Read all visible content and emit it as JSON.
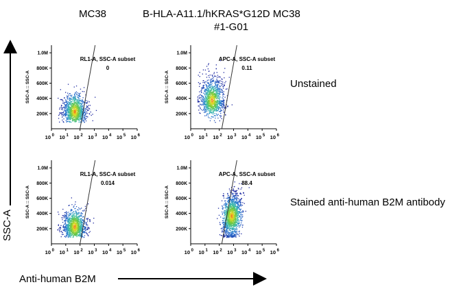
{
  "column_titles": [
    "MC38",
    "B-HLA-A11.1/hKRAS*G12D MC38",
    "#1-G01"
  ],
  "row_labels": [
    "Unstained",
    "Stained anti-human B2M antibody"
  ],
  "y_axis_label": "SSC-A",
  "x_axis_label": "Anti-human B2M",
  "chart_data": [
    {
      "type": "scatter",
      "sample": "MC38",
      "row": "Unstained",
      "gate_label": "RL1-A, SSC-A subset",
      "gate_value": "0",
      "ylabel": "SSC-A :: SSC-A",
      "yticks": [
        "200K",
        "400K",
        "600K",
        "800K",
        "1.0M"
      ],
      "yrange": [
        0,
        1100000
      ],
      "xticks": [
        "10^0",
        "10^1",
        "10^2",
        "10^3",
        "10^4",
        "10^5",
        "10^6"
      ],
      "xscale": "log",
      "gate_x_range": [
        100,
        1000000
      ],
      "population_center": {
        "x": 40,
        "y": 230000
      }
    },
    {
      "type": "scatter",
      "sample": "B-HLA-A11.1/hKRAS*G12D MC38 #1-G01",
      "row": "Unstained",
      "gate_label": "APC-A, SSC-A subset",
      "gate_value": "0.11",
      "ylabel": "SSC-A :: SSC-A",
      "yticks": [
        "200K",
        "400K",
        "600K",
        "800K",
        "1.0M"
      ],
      "yrange": [
        0,
        1100000
      ],
      "xticks": [
        "10^0",
        "10^1",
        "10^2",
        "10^3",
        "10^4",
        "10^5",
        "10^6"
      ],
      "xscale": "log",
      "gate_x_range": [
        150,
        1000000
      ],
      "population_center": {
        "x": 30,
        "y": 380000
      }
    },
    {
      "type": "scatter",
      "sample": "MC38",
      "row": "Stained anti-human B2M antibody",
      "gate_label": "RL1-A, SSC-A subset",
      "gate_value": "0.014",
      "ylabel": "SSC-A :: SSC-A",
      "yticks": [
        "200K",
        "400K",
        "600K",
        "800K",
        "1.0M"
      ],
      "yrange": [
        0,
        1100000
      ],
      "xticks": [
        "10^0",
        "10^1",
        "10^2",
        "10^3",
        "10^4",
        "10^5",
        "10^6"
      ],
      "xscale": "log",
      "gate_x_range": [
        100,
        1000000
      ],
      "population_center": {
        "x": 40,
        "y": 230000
      }
    },
    {
      "type": "scatter",
      "sample": "B-HLA-A11.1/hKRAS*G12D MC38 #1-G01",
      "row": "Stained anti-human B2M antibody",
      "gate_label": "APC-A, SSC-A subset",
      "gate_value": "88.4",
      "ylabel": "SSC-A :: SSC-A",
      "yticks": [
        "200K",
        "400K",
        "600K",
        "800K",
        "1.0M"
      ],
      "yrange": [
        0,
        1100000
      ],
      "xticks": [
        "10^0",
        "10^1",
        "10^2",
        "10^3",
        "10^4",
        "10^5",
        "10^6"
      ],
      "xscale": "log",
      "gate_x_range": [
        150,
        1000000
      ],
      "population_center": {
        "x": 700,
        "y": 370000
      }
    }
  ]
}
